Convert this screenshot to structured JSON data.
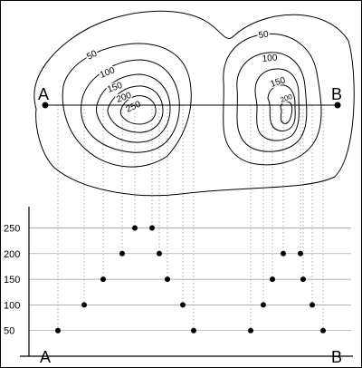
{
  "map": {
    "endpoints": {
      "left": "A",
      "right": "B"
    },
    "contour_labels": {
      "left_hill": [
        "50",
        "100",
        "150",
        "200",
        "250"
      ],
      "right_hill": [
        "50",
        "100",
        "150",
        "200"
      ]
    }
  },
  "profile": {
    "start_label": "A",
    "end_label": "B",
    "y_ticks": [
      "50",
      "100",
      "150",
      "200",
      "250"
    ],
    "tick_values": [
      50,
      100,
      150,
      200,
      250
    ],
    "elevations": [
      50,
      100,
      150,
      200,
      250,
      250,
      200,
      150,
      100,
      50,
      50,
      100,
      150,
      200,
      200,
      150,
      100,
      50
    ]
  }
}
